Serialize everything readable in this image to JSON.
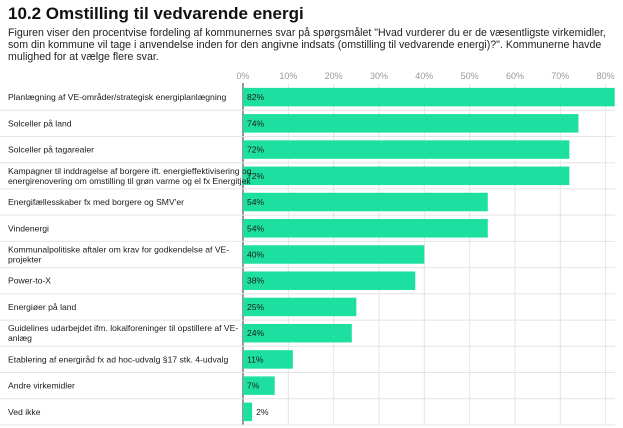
{
  "title": "10.2 Omstilling til vedvarende energi",
  "subtitle": "Figuren viser den procentvise fordeling af kommunernes svar på spørgsmålet \"Hvad vurderer du er de væsentligste virkemidler, som din kommune vil tage i anvendelse inden for den angivne indsats (omstilling til vedvarende energi)?\". Kommunerne havde mulighed for at vælge flere svar.",
  "colors": {
    "bar": "#1de0a0",
    "grid": "#e4e4e4",
    "axis": "#333333"
  },
  "chart_data": {
    "type": "bar",
    "orientation": "horizontal",
    "xlim": [
      0,
      82
    ],
    "ticks": [
      0,
      10,
      20,
      30,
      40,
      50,
      60,
      70,
      80
    ],
    "tick_labels": [
      "0%",
      "10%",
      "20%",
      "30%",
      "40%",
      "50%",
      "60%",
      "70%",
      "80%"
    ],
    "grid": true,
    "categories": [
      [
        "Planlægning af VE-områder/strategisk energiplanlægning"
      ],
      [
        "Solceller på land"
      ],
      [
        "Solceller på tagarealer"
      ],
      [
        "Kampagner til inddragelse af borgere ift. energieffektivisering og",
        "energirenovering om omstilling til grøn varme og el fx Energitjek"
      ],
      [
        "Energifællesskaber fx med borgere og SMV'er"
      ],
      [
        "Vindenergi"
      ],
      [
        "Kommunalpolitiske aftaler om krav for godkendelse af VE-",
        "projekter"
      ],
      [
        "Power-to-X"
      ],
      [
        "Energiøer på land"
      ],
      [
        "Guidelines udarbejdet ifm. lokalforeninger til opstillere af VE-",
        "anlæg"
      ],
      [
        "Etablering af energiråd fx ad hoc-udvalg §17 stk. 4-udvalg"
      ],
      [
        "Andre virkemidler"
      ],
      [
        "Ved ikke"
      ]
    ],
    "values": [
      82,
      74,
      72,
      72,
      54,
      54,
      40,
      38,
      25,
      24,
      11,
      7,
      2
    ],
    "value_labels": [
      "82%",
      "74%",
      "72%",
      "72%",
      "54%",
      "54%",
      "40%",
      "38%",
      "25%",
      "24%",
      "11%",
      "7%",
      "2%"
    ]
  }
}
